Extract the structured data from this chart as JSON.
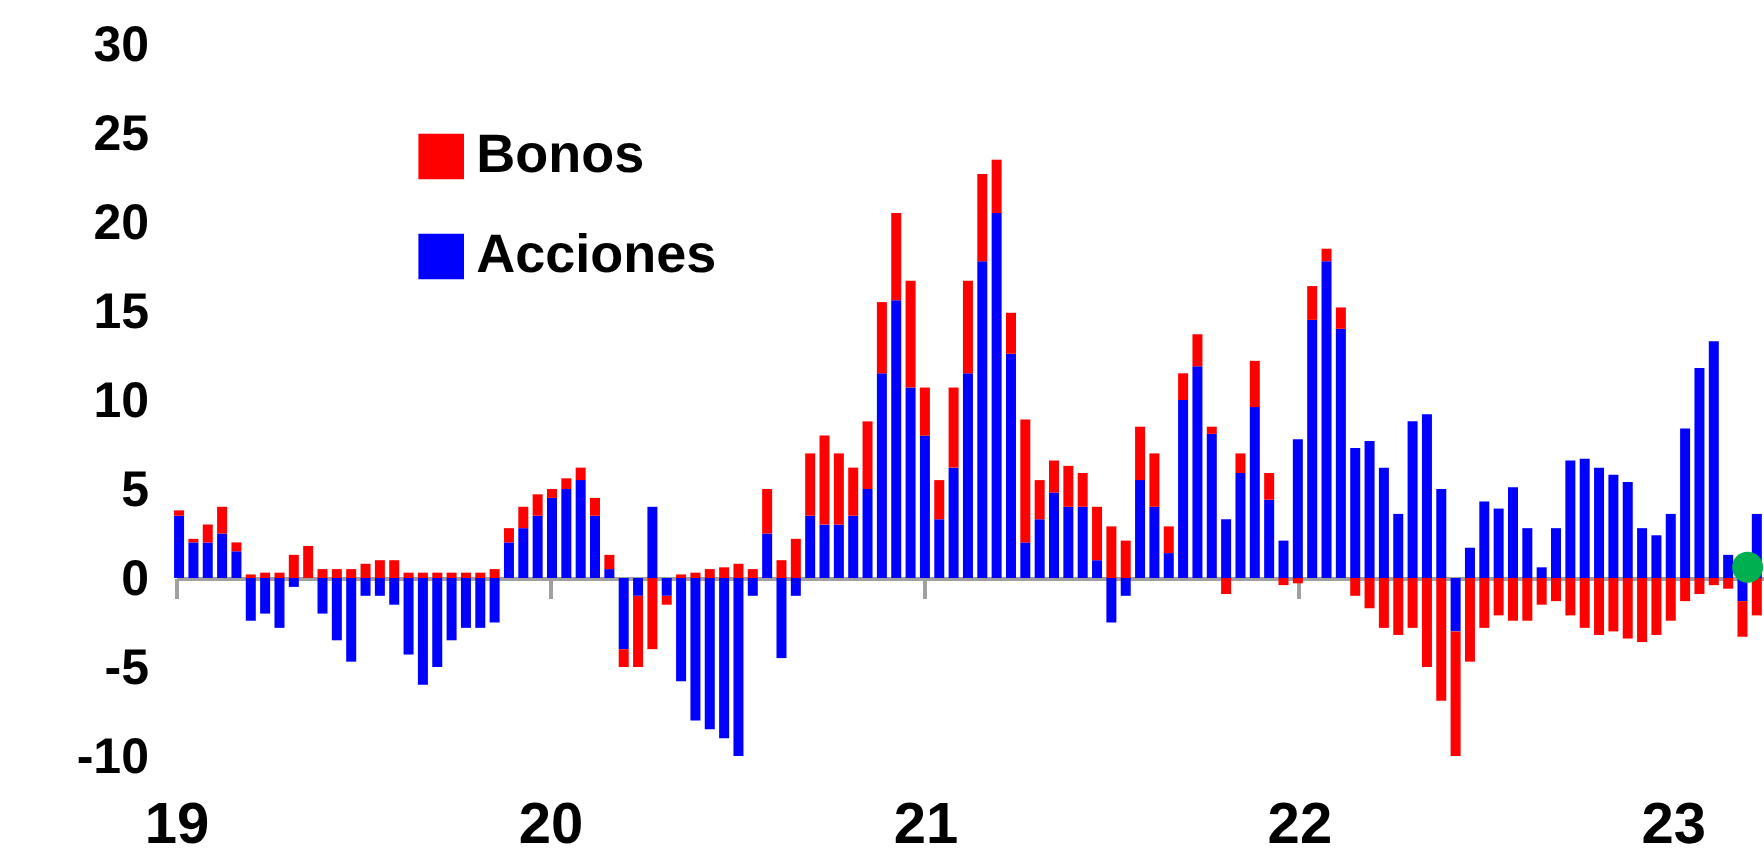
{
  "chart_data": {
    "type": "bar",
    "stacked": true,
    "legend": "top left",
    "x": [
      "2019-01-04",
      "2019-01-18",
      "2019-02-01",
      "2019-02-15",
      "2019-03-01",
      "2019-03-15",
      "2019-03-29",
      "2019-04-12",
      "2019-04-26",
      "2019-05-10",
      "2019-05-24",
      "2019-06-07",
      "2019-06-21",
      "2019-07-05",
      "2019-07-19",
      "2019-08-02",
      "2019-08-16",
      "2019-08-30",
      "2019-09-13",
      "2019-09-27",
      "2019-10-11",
      "2019-10-25",
      "2019-11-08",
      "2019-11-22",
      "2019-12-06",
      "2019-12-20",
      "2020-01-03",
      "2020-01-17",
      "2020-01-31",
      "2020-02-14",
      "2020-02-28",
      "2020-03-13",
      "2020-03-27",
      "2020-04-10",
      "2020-04-24",
      "2020-05-08",
      "2020-05-22",
      "2020-06-05",
      "2020-06-19",
      "2020-07-03",
      "2020-07-17",
      "2020-07-31",
      "2020-08-14",
      "2020-08-28",
      "2020-09-11",
      "2020-09-25",
      "2020-10-09",
      "2020-10-23",
      "2020-11-06",
      "2020-11-20",
      "2020-12-04",
      "2020-12-18",
      "2021-01-01",
      "2021-01-15",
      "2021-01-29",
      "2021-02-12",
      "2021-02-26",
      "2021-03-12",
      "2021-03-26",
      "2021-04-09",
      "2021-04-23",
      "2021-05-07",
      "2021-05-21",
      "2021-06-04",
      "2021-06-18",
      "2021-07-02",
      "2021-07-16",
      "2021-07-30",
      "2021-08-13",
      "2021-08-27",
      "2021-09-10",
      "2021-09-24",
      "2021-10-08",
      "2021-10-22",
      "2021-11-05",
      "2021-11-19",
      "2021-12-03",
      "2021-12-17",
      "2021-12-31",
      "2022-01-14",
      "2022-01-28",
      "2022-02-11",
      "2022-02-25",
      "2022-03-11",
      "2022-03-25",
      "2022-04-08",
      "2022-04-22",
      "2022-05-06",
      "2022-05-20",
      "2022-06-03",
      "2022-06-17",
      "2022-07-01",
      "2022-07-15",
      "2022-07-29",
      "2022-08-12",
      "2022-08-26",
      "2022-09-09",
      "2022-09-23",
      "2022-10-07",
      "2022-10-21",
      "2022-11-04",
      "2022-11-18",
      "2022-12-02",
      "2022-12-16",
      "2022-12-30",
      "2023-01-13",
      "2023-01-27",
      "2023-02-10",
      "2023-02-24",
      "2023-03-10",
      "2023-03-24"
    ],
    "series": [
      {
        "name": "Acciones",
        "color": "#0000ff",
        "values": [
          3.5,
          2,
          2,
          2.5,
          1.5,
          -2.4,
          -2,
          -2.8,
          -0.5,
          0,
          -2,
          -3.5,
          -4.7,
          -1,
          -1,
          -1.5,
          -4.3,
          -6,
          -5,
          -3.5,
          -2.8,
          -2.8,
          -2.5,
          2,
          2.8,
          3.5,
          4.5,
          5,
          5.5,
          3.5,
          0.5,
          -4,
          -1,
          4,
          -1,
          -5.8,
          -8,
          -8.5,
          -9,
          -10,
          -1,
          2.5,
          -4.5,
          -1,
          3.5,
          3,
          3,
          3.5,
          5,
          11.5,
          15.6,
          10.7,
          8,
          3.3,
          6.2,
          11.5,
          17.8,
          20.5,
          12.6,
          2,
          3.3,
          4.8,
          4,
          4,
          1,
          -2.5,
          -1,
          5.5,
          4,
          1.4,
          10,
          11.9,
          8.1,
          3.3,
          5.9,
          9.6,
          4.4,
          2.1,
          7.8,
          14.5,
          17.8,
          14,
          7.3,
          7.7,
          6.2,
          3.6,
          8.8,
          9.2,
          5,
          -3,
          1.7,
          4.3,
          3.9,
          5.1,
          2.8,
          0.6,
          2.8,
          6.6,
          6.7,
          6.2,
          5.8,
          5.4,
          2.8,
          2.4,
          3.6,
          8.4,
          11.8,
          13.3,
          1.3,
          -1.3,
          3.6
        ]
      },
      {
        "name": "Bonos",
        "color": "#ff0000",
        "values": [
          0.3,
          0.2,
          1,
          1.5,
          0.5,
          0.2,
          0.3,
          0.3,
          1.3,
          1.8,
          0.5,
          0.5,
          0.5,
          0.8,
          1,
          1,
          0.3,
          0.3,
          0.3,
          0.3,
          0.3,
          0.3,
          0.5,
          0.8,
          1.2,
          1.2,
          0.5,
          0.6,
          0.7,
          1,
          0.8,
          -1,
          -4,
          -4,
          -0.5,
          0.2,
          0.3,
          0.5,
          0.6,
          0.8,
          0.5,
          2.5,
          1,
          2.2,
          3.5,
          5,
          4,
          2.7,
          3.8,
          4,
          4.9,
          6,
          2.7,
          2.2,
          4.5,
          5.2,
          4.9,
          3,
          2.3,
          6.9,
          2.2,
          1.8,
          2.3,
          1.9,
          3,
          2.9,
          2.1,
          3,
          3,
          1.5,
          1.5,
          1.8,
          0.4,
          -0.9,
          1.1,
          2.6,
          1.5,
          -0.4,
          -0.3,
          1.9,
          0.7,
          1.2,
          -1,
          -1.7,
          -2.8,
          -3.2,
          -2.8,
          -5,
          -6.9,
          -7,
          -4.7,
          -2.8,
          -2.1,
          -2.4,
          -2.4,
          -1.5,
          -1.3,
          -2.1,
          -2.8,
          -3.2,
          -3,
          -3.4,
          -3.6,
          -3.2,
          -2.4,
          -1.3,
          -0.9,
          -0.4,
          -0.6,
          -2,
          -2.1
        ]
      },
      {
        "type": "scatter",
        "marker": "circle",
        "color": "#00b050",
        "x": [
          "2023-03-15"
        ],
        "values": [
          0.6
        ]
      }
    ],
    "xlim": [
      "2019-01-01",
      "2023-03-31"
    ],
    "xticks": [
      {
        "value": "2019-01-01",
        "label": "19"
      },
      {
        "value": "2020-01-01",
        "label": "20"
      },
      {
        "value": "2021-01-01",
        "label": "21"
      },
      {
        "value": "2022-01-01",
        "label": "22"
      },
      {
        "value": "2023-01-01",
        "label": "23"
      }
    ],
    "ylim": [
      -10,
      30
    ],
    "yticks": [
      -10,
      -5,
      0,
      5,
      10,
      15,
      20,
      25,
      30
    ]
  }
}
